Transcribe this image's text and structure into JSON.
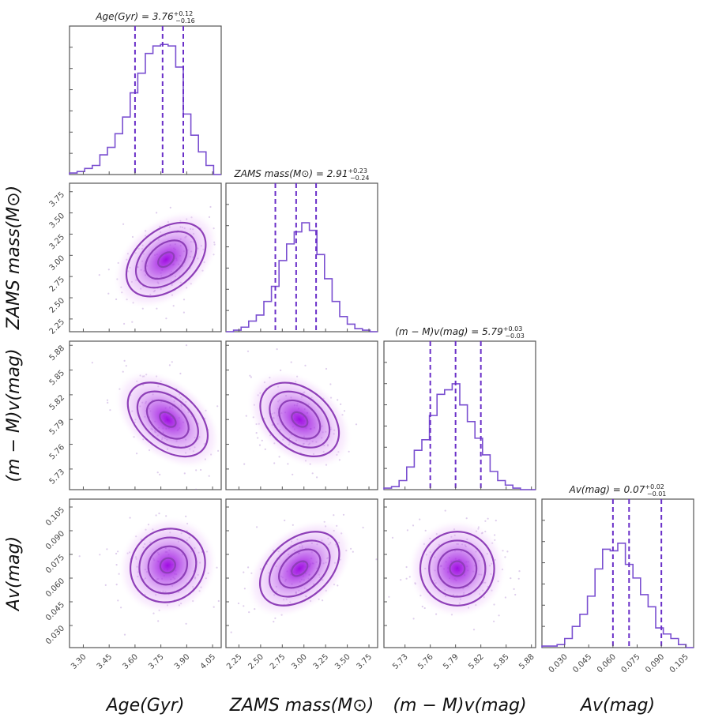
{
  "chart_data": {
    "type": "corner",
    "title": "",
    "color": "#9b30d9",
    "parameters": [
      {
        "key": "age",
        "label": "Age(Gyr)",
        "median": 3.76,
        "plus": 0.12,
        "minus": 0.16,
        "title": "Age(Gyr) = 3.76",
        "title_sup": "+0.12",
        "title_sub": "−0.16",
        "range": [
          3.22,
          4.1
        ],
        "ticks": [
          3.3,
          3.45,
          3.6,
          3.75,
          3.9,
          4.05
        ],
        "tick_labels": [
          "3.30",
          "3.45",
          "3.60",
          "3.75",
          "3.90",
          "4.05"
        ],
        "hist": [
          0.01,
          0.02,
          0.04,
          0.06,
          0.13,
          0.18,
          0.27,
          0.38,
          0.54,
          0.67,
          0.8,
          0.85,
          0.86,
          0.85,
          0.71,
          0.4,
          0.26,
          0.15,
          0.06,
          0.0
        ]
      },
      {
        "key": "mass",
        "label": "ZAMS mass(M⊙)",
        "median": 2.91,
        "plus": 0.23,
        "minus": 0.24,
        "title": "ZAMS mass(M⊙) = 2.91",
        "title_sup": "+0.23",
        "title_sub": "−0.24",
        "range": [
          2.1,
          3.85
        ],
        "ticks": [
          2.25,
          2.5,
          2.75,
          3.0,
          3.25,
          3.5,
          3.75
        ],
        "tick_labels": [
          "2.25",
          "2.50",
          "2.75",
          "3.00",
          "3.25",
          "3.50",
          "3.75"
        ],
        "hist": [
          0.0,
          0.01,
          0.03,
          0.07,
          0.11,
          0.2,
          0.3,
          0.47,
          0.58,
          0.66,
          0.72,
          0.67,
          0.51,
          0.35,
          0.2,
          0.1,
          0.05,
          0.02,
          0.01,
          0.0
        ]
      },
      {
        "key": "distmod",
        "label": "(m − M)v(mag)",
        "median": 5.79,
        "plus": 0.03,
        "minus": 0.03,
        "title": "(m − M)v(mag) = 5.79",
        "title_sup": "+0.03",
        "title_sub": "−0.03",
        "range": [
          5.705,
          5.885
        ],
        "ticks": [
          5.73,
          5.76,
          5.79,
          5.82,
          5.85,
          5.88
        ],
        "tick_labels": [
          "5.73",
          "5.76",
          "5.79",
          "5.82",
          "5.85",
          "5.88"
        ],
        "hist": [
          0.01,
          0.02,
          0.06,
          0.15,
          0.26,
          0.33,
          0.49,
          0.63,
          0.66,
          0.7,
          0.56,
          0.45,
          0.34,
          0.23,
          0.12,
          0.06,
          0.03,
          0.01,
          0.0,
          0.0
        ]
      },
      {
        "key": "av",
        "label": "Av(mag)",
        "median": 0.07,
        "plus": 0.02,
        "minus": 0.01,
        "title": "Av(mag) = 0.07",
        "title_sup": "+0.02",
        "title_sub": "−0.01",
        "range": [
          0.016,
          0.11
        ],
        "ticks": [
          0.03,
          0.045,
          0.06,
          0.075,
          0.09,
          0.105
        ],
        "tick_labels": [
          "0.030",
          "0.045",
          "0.060",
          "0.075",
          "0.090",
          "0.105"
        ],
        "hist": [
          0.01,
          0.01,
          0.02,
          0.06,
          0.14,
          0.22,
          0.34,
          0.52,
          0.65,
          0.64,
          0.69,
          0.55,
          0.46,
          0.35,
          0.27,
          0.13,
          0.09,
          0.06,
          0.02,
          0.0
        ]
      }
    ],
    "quantile_lines": "16th, 50th, 84th percentiles (dashed)",
    "correlations": [
      {
        "x": "age",
        "y": "mass",
        "rho": 0.55,
        "center": [
          3.78,
          2.95
        ]
      },
      {
        "x": "age",
        "y": "distmod",
        "rho": -0.6,
        "center": [
          3.79,
          5.79
        ]
      },
      {
        "x": "mass",
        "y": "distmod",
        "rho": -0.5,
        "center": [
          2.95,
          5.79
        ]
      },
      {
        "x": "age",
        "y": "av",
        "rho": 0.1,
        "center": [
          3.79,
          0.068
        ]
      },
      {
        "x": "mass",
        "y": "av",
        "rho": 0.55,
        "center": [
          2.95,
          0.066
        ]
      },
      {
        "x": "distmod",
        "y": "av",
        "rho": 0.0,
        "center": [
          5.792,
          0.066
        ]
      }
    ],
    "contour_levels": [
      0.5,
      1.0,
      1.5,
      2.0
    ],
    "grid": false,
    "legend": "none"
  }
}
